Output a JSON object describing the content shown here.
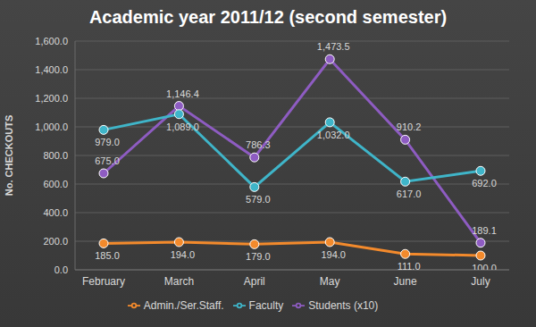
{
  "chart_data": {
    "type": "line",
    "title": "Academic year 2011/12 (second semester)",
    "y_label": "No. CHECKOUTS",
    "categories": [
      "February",
      "March",
      "April",
      "May",
      "June",
      "July"
    ],
    "series": [
      {
        "name": "Students (x10)",
        "color": "#8e5cc2",
        "marker": "circle",
        "values": [
          675.0,
          1146.4,
          786.3,
          1473.5,
          910.2,
          189.1
        ],
        "value_labels": [
          "675.0",
          "1,146.4",
          "786.3",
          "1,473.5",
          "910.2",
          "189.1"
        ]
      },
      {
        "name": "Faculty",
        "color": "#3fb5c9",
        "marker": "circle",
        "values": [
          979.0,
          1089.0,
          579.0,
          1032.0,
          617.0,
          692.0
        ],
        "value_labels": [
          "979.0",
          "1,089.0",
          "579.0",
          "1,032.0",
          "617.0",
          "692.0"
        ]
      },
      {
        "name": "Admin./Ser.Staff.",
        "color": "#f38a2c",
        "marker": "circle",
        "values": [
          185.0,
          194.0,
          179.0,
          194.0,
          111.0,
          100.0
        ],
        "value_labels": [
          "185.0",
          "194.0",
          "179.0",
          "194.0",
          "111.0",
          "100.0"
        ]
      }
    ],
    "ylim": [
      0,
      1600
    ],
    "yticks": [
      {
        "value": 0,
        "label": "0.0"
      },
      {
        "value": 200,
        "label": "200.0"
      },
      {
        "value": 400,
        "label": "400.0"
      },
      {
        "value": 600,
        "label": "600.0"
      },
      {
        "value": 800,
        "label": "800.0"
      },
      {
        "value": 1000,
        "label": "1,000.0"
      },
      {
        "value": 1200,
        "label": "1,200.0"
      },
      {
        "value": 1400,
        "label": "1,400.0"
      },
      {
        "value": 1600,
        "label": "1,600.0"
      }
    ],
    "grid": true,
    "legend": "bottom",
    "data_labels": true
  }
}
